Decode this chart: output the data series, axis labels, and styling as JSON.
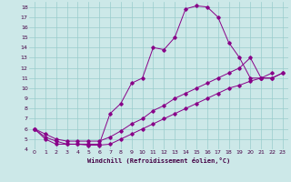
{
  "xlabel": "Windchill (Refroidissement éolien,°C)",
  "xlim": [
    -0.5,
    23.5
  ],
  "ylim": [
    4,
    18.5
  ],
  "xticks": [
    0,
    1,
    2,
    3,
    4,
    5,
    6,
    7,
    8,
    9,
    10,
    11,
    12,
    13,
    14,
    15,
    16,
    17,
    18,
    19,
    20,
    21,
    22,
    23
  ],
  "yticks": [
    4,
    5,
    6,
    7,
    8,
    9,
    10,
    11,
    12,
    13,
    14,
    15,
    16,
    17,
    18
  ],
  "bg_color": "#cce8e8",
  "line_color": "#880088",
  "grid_color": "#99cccc",
  "line1_x": [
    0,
    1,
    2,
    3,
    4,
    5,
    6,
    7,
    8,
    9,
    10,
    11,
    12,
    13,
    14,
    15,
    16,
    17,
    18,
    19,
    20,
    21,
    22
  ],
  "line1_y": [
    6,
    5,
    4.5,
    4.5,
    4.5,
    4.5,
    4.5,
    7.5,
    8.5,
    10.5,
    11,
    14,
    13.8,
    15,
    17.8,
    18.1,
    18.0,
    17.0,
    14.5,
    13,
    11,
    11,
    11.5
  ],
  "line2_x": [
    0,
    1,
    2,
    3,
    4,
    5,
    6,
    7,
    8,
    9,
    10,
    11,
    12,
    13,
    14,
    15,
    16,
    17,
    18,
    19,
    20,
    21,
    22,
    23
  ],
  "line2_y": [
    6,
    5.5,
    5,
    4.8,
    4.8,
    4.8,
    4.8,
    5.2,
    5.8,
    6.5,
    7.0,
    7.8,
    8.3,
    9.0,
    9.5,
    10.0,
    10.5,
    11.0,
    11.5,
    12.0,
    13.0,
    11.0,
    11.0,
    11.5
  ],
  "line3_x": [
    0,
    1,
    2,
    3,
    4,
    5,
    6,
    7,
    8,
    9,
    10,
    11,
    12,
    13,
    14,
    15,
    16,
    17,
    18,
    19,
    20,
    21,
    22,
    23
  ],
  "line3_y": [
    6,
    5.2,
    4.8,
    4.5,
    4.5,
    4.4,
    4.4,
    4.5,
    5.0,
    5.5,
    6.0,
    6.5,
    7.0,
    7.5,
    8.0,
    8.5,
    9.0,
    9.5,
    10.0,
    10.3,
    10.7,
    11.0,
    11.0,
    11.5
  ]
}
